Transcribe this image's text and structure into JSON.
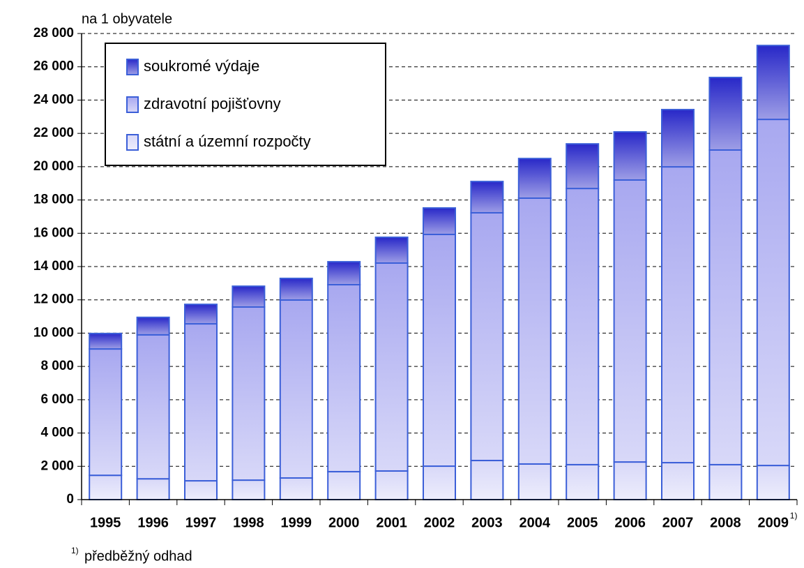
{
  "chart_data": {
    "type": "stacked_bar",
    "y_label": "na 1 obyvatele",
    "categories": [
      "1995",
      "1996",
      "1997",
      "1998",
      "1999",
      "2000",
      "2001",
      "2002",
      "2003",
      "2004",
      "2005",
      "2006",
      "2007",
      "2008",
      "2009"
    ],
    "category_footnote": "1)",
    "series": [
      {
        "name": "státní a územní rozpočty",
        "color": "#d8d8f8",
        "values": [
          1460,
          1250,
          1130,
          1170,
          1300,
          1680,
          1720,
          2010,
          2350,
          2140,
          2100,
          2260,
          2220,
          2100,
          2050
        ]
      },
      {
        "name": "zdravotní pojišťovny",
        "color": "#a8a8f0",
        "values": [
          7590,
          8650,
          9430,
          10400,
          10690,
          11230,
          12490,
          13920,
          14880,
          15970,
          16590,
          16940,
          17770,
          18900,
          20790
        ]
      },
      {
        "name": "soukromé výdaje",
        "color": "#2828c8",
        "values": [
          930,
          1050,
          1170,
          1250,
          1300,
          1380,
          1550,
          1590,
          1880,
          2380,
          2680,
          2890,
          3440,
          4360,
          4440
        ]
      }
    ],
    "ylim": [
      0,
      28000
    ],
    "yticks": [
      0,
      {
        "value": 2000,
        "label": "2 000"
      },
      {
        "value": 4000,
        "label": "4 000"
      },
      {
        "value": 6000,
        "label": "6 000"
      },
      {
        "value": 8000,
        "label": "8 000"
      },
      {
        "value": 10000,
        "label": "10 000"
      },
      {
        "value": 12000,
        "label": "12 000"
      },
      {
        "value": 14000,
        "label": "14 000"
      },
      {
        "value": 16000,
        "label": "16 000"
      },
      {
        "value": 18000,
        "label": "18 000"
      },
      {
        "value": 20000,
        "label": "20 000"
      },
      {
        "value": 22000,
        "label": "22 000"
      },
      {
        "value": 24000,
        "label": "24 000"
      },
      {
        "value": 26000,
        "label": "26 000"
      },
      {
        "value": 28000,
        "label": "28 000"
      }
    ],
    "grid": true,
    "legend": "top-left",
    "footnote": {
      "marker": "1)",
      "text": "předběžný odhad"
    }
  }
}
